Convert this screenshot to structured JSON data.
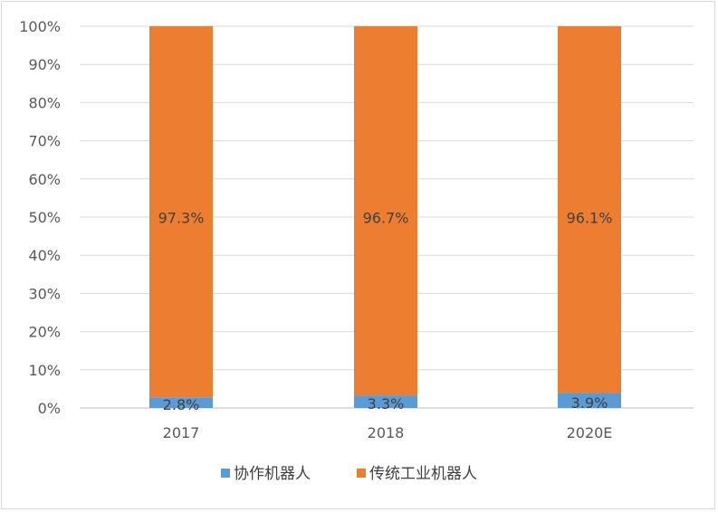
{
  "chart_data": {
    "type": "bar",
    "stacked": true,
    "percent": true,
    "categories": [
      "2017",
      "2018",
      "2020E"
    ],
    "series": [
      {
        "name": "协作机器人",
        "values": [
          2.8,
          3.3,
          3.9
        ],
        "labels": [
          "2.8%",
          "3.3%",
          "3.9%"
        ],
        "color": "#5b9bd5"
      },
      {
        "name": "传统工业机器人",
        "values": [
          97.3,
          96.7,
          96.1
        ],
        "labels": [
          "97.3%",
          "96.7%",
          "96.1%"
        ],
        "color": "#ed7d31"
      }
    ],
    "ylim": [
      0,
      100
    ],
    "yticks": [
      "0%",
      "10%",
      "20%",
      "30%",
      "40%",
      "50%",
      "60%",
      "70%",
      "80%",
      "90%",
      "100%"
    ],
    "grid": true,
    "legend": "bottom"
  }
}
